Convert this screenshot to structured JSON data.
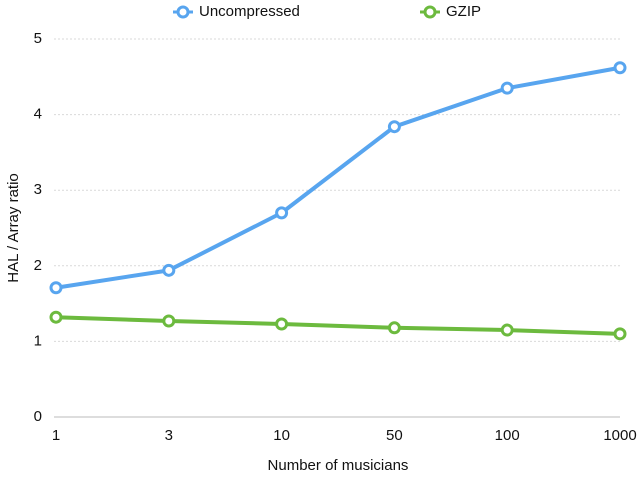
{
  "chart_data": {
    "type": "line",
    "x_label": "Number of musicians",
    "y_label": "HAL / Array ratio",
    "categories": [
      "1",
      "3",
      "10",
      "50",
      "100",
      "1000"
    ],
    "series": [
      {
        "name": "Uncompressed",
        "color": "#58a5ef",
        "values": [
          1.71,
          1.94,
          2.7,
          3.84,
          4.35,
          4.62
        ]
      },
      {
        "name": "GZIP",
        "color": "#6cba3e",
        "values": [
          1.32,
          1.27,
          1.23,
          1.18,
          1.15,
          1.1
        ]
      }
    ],
    "ylim": [
      0,
      5
    ],
    "yticks": [
      0,
      1,
      2,
      3,
      4,
      5
    ],
    "grid": true,
    "legend": "top"
  }
}
